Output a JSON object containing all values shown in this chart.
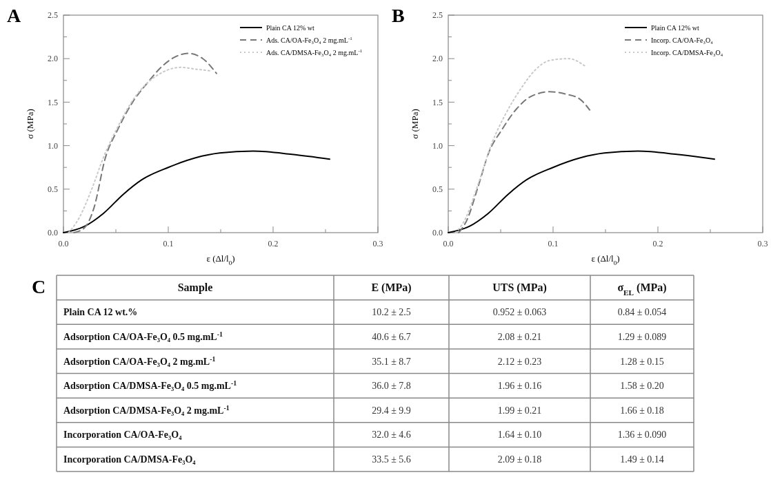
{
  "chart_data": [
    {
      "type": "line",
      "title": "A",
      "xlabel": "ε (Δl/l$_{0}$)",
      "ylabel": "σ (MPa)",
      "xlim": [
        0,
        0.3
      ],
      "ylim": [
        0,
        2.5
      ],
      "xticks": [
        {
          "value": 0,
          "label": "0.0"
        },
        {
          "value": 0.05,
          "label": null
        },
        0.1,
        {
          "value": 0.15,
          "label": null
        },
        0.2,
        {
          "value": 0.25,
          "label": null
        },
        0.3
      ],
      "yticks": [
        {
          "value": 0,
          "label": "0.0"
        },
        {
          "value": 0.25,
          "label": null
        },
        0.5,
        {
          "value": 0.75,
          "label": null
        },
        {
          "value": 1,
          "label": "1.0"
        },
        {
          "value": 1.25,
          "label": null
        },
        1.5,
        {
          "value": 1.75,
          "label": null
        },
        {
          "value": 2,
          "label": "2.0"
        },
        {
          "value": 2.25,
          "label": null
        },
        2.5
      ],
      "legend": "top right",
      "series": [
        {
          "name": "Plain CA 12% wt",
          "color": "#000000",
          "line_style": "solid",
          "x": [
            0,
            0.0197,
            0.038,
            0.057,
            0.075,
            0.1,
            0.126,
            0.149,
            0.181,
            0.218,
            0.254
          ],
          "values": [
            0,
            0.07,
            0.22,
            0.44,
            0.61,
            0.75,
            0.86,
            0.915,
            0.937,
            0.9,
            0.845
          ]
        },
        {
          "name": "Ads. CA/OA-Fe₃O₄ 2 mg.mL$^{-1}$",
          "color": "#777777",
          "line_style": "dashed",
          "x": [
            0.01,
            0.02,
            0.029,
            0.04,
            0.052,
            0.066,
            0.08,
            0.094,
            0.105,
            0.119,
            0.133,
            0.146
          ],
          "values": [
            0,
            0.055,
            0.28,
            0.86,
            1.19,
            1.5,
            1.72,
            1.91,
            2.01,
            2.06,
            2.0,
            1.83
          ]
        },
        {
          "name": "Ads. CA/DMSA-Fe₃O₄ 2 mg.mL$^{-1}$",
          "color": "#c8c8c8",
          "line_style": "dotted",
          "x": [
            0.005,
            0.015,
            0.027,
            0.038,
            0.052,
            0.066,
            0.08,
            0.094,
            0.112,
            0.126,
            0.14
          ],
          "values": [
            0,
            0.17,
            0.5,
            0.86,
            1.22,
            1.52,
            1.72,
            1.84,
            1.9,
            1.88,
            1.86
          ]
        }
      ]
    },
    {
      "type": "line",
      "title": "B",
      "xlabel": "ε (Δl/l$_{0}$)",
      "ylabel": "σ (MPa)",
      "xlim": [
        0,
        0.3
      ],
      "ylim": [
        0,
        2.5
      ],
      "xticks": [
        {
          "value": 0,
          "label": "0.0"
        },
        {
          "value": 0.05,
          "label": null
        },
        0.1,
        {
          "value": 0.15,
          "label": null
        },
        0.2,
        {
          "value": 0.25,
          "label": null
        },
        0.3
      ],
      "yticks": [
        {
          "value": 0,
          "label": "0.0"
        },
        {
          "value": 0.25,
          "label": null
        },
        0.5,
        {
          "value": 0.75,
          "label": null
        },
        {
          "value": 1,
          "label": "1.0"
        },
        {
          "value": 1.25,
          "label": null
        },
        1.5,
        {
          "value": 1.75,
          "label": null
        },
        {
          "value": 2,
          "label": "2.0"
        },
        {
          "value": 2.25,
          "label": null
        },
        2.5
      ],
      "legend": "top right",
      "series": [
        {
          "name": "Plain CA 12% wt",
          "color": "#000000",
          "line_style": "solid",
          "x": [
            0,
            0.0197,
            0.038,
            0.057,
            0.075,
            0.1,
            0.126,
            0.149,
            0.181,
            0.218,
            0.254
          ],
          "values": [
            0,
            0.07,
            0.22,
            0.44,
            0.61,
            0.75,
            0.86,
            0.915,
            0.937,
            0.9,
            0.845
          ]
        },
        {
          "name": "Incorp. CA/OA-Fe₃O₄",
          "color": "#777777",
          "line_style": "dashed",
          "x": [
            0.01,
            0.018,
            0.028,
            0.039,
            0.051,
            0.065,
            0.078,
            0.097,
            0.113,
            0.125,
            0.135
          ],
          "values": [
            0,
            0.15,
            0.51,
            0.93,
            1.18,
            1.42,
            1.56,
            1.62,
            1.59,
            1.54,
            1.41
          ]
        },
        {
          "name": "Incorp. CA/DMSA-Fe₃O₄",
          "color": "#c8c8c8",
          "line_style": "dotted",
          "x": [
            0.007,
            0.016,
            0.028,
            0.042,
            0.055,
            0.069,
            0.083,
            0.097,
            0.115,
            0.131
          ],
          "values": [
            0,
            0.15,
            0.54,
            1.04,
            1.37,
            1.65,
            1.87,
            1.98,
            2.0,
            1.91
          ]
        }
      ]
    },
    {
      "type": "other",
      "title": "C",
      "annotations": [
        "Sample",
        "E (MPa)",
        "UTS (MPa)",
        "σ$_{EL}$ (MPa)",
        "Plain CA 12 wt.%",
        "10.2 ± 2.5",
        "0.952 ± 0.063",
        "0.84 ± 0.054",
        "Adsorption CA/OA-Fe₃O₄ 0.5 mg.mL$^{-1}$",
        "40.6 ± 6.7",
        "2.08 ± 0.21",
        "1.29 ± 0.089",
        "Adsorption CA/OA-Fe₃O₄ 2 mg.mL$^{-1}$",
        "35.1 ± 8.7",
        "2.12 ± 0.23",
        "1.28 ± 0.15",
        "Adsorption CA/DMSA-Fe₃O₄ 0.5 mg.mL$^{-1}$",
        "36.0 ± 7.8",
        "1.96 ± 0.16",
        "1.58 ± 0.20",
        "Adsorption CA/DMSA-Fe₃O₄ 2 mg.mL$^{-1}$",
        "29.4 ± 9.9",
        "1.99 ± 0.21",
        "1.66 ± 0.18",
        "Incorporation CA/OA-Fe₃O₄",
        "32.0 ± 4.6",
        "1.64 ± 0.10",
        "1.36 ± 0.090",
        "Incorporation CA/DMSA-Fe₃O₄",
        "33.5 ± 5.6",
        "2.09 ± 0.18",
        "1.49 ± 0.14"
      ]
    }
  ]
}
